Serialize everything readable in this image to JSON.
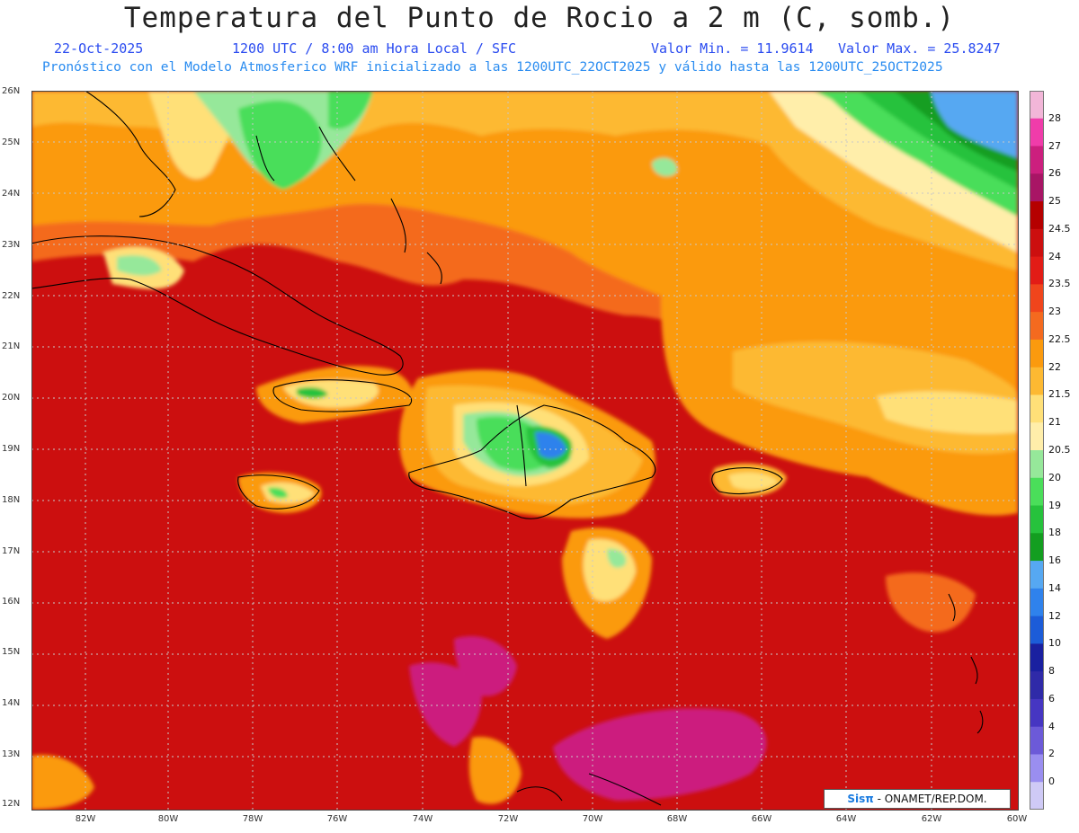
{
  "header": {
    "title": "Temperatura del Punto de Rocio a 2 m (C, somb.)",
    "date": "22-Oct-2025",
    "time": "1200 UTC / 8:00 am Hora Local / SFC",
    "min": "Valor Min. = 11.9614",
    "max": "Valor Max. = 25.8247",
    "forecast": "Pronóstico con el Modelo Atmosferico WRF inicializado a las 1200UTC_22OCT2025 y válido hasta las  1200UTC_25OCT2025"
  },
  "map": {
    "lat_labels": [
      "26N",
      "25N",
      "24N",
      "23N",
      "22N",
      "21N",
      "20N",
      "19N",
      "18N",
      "17N",
      "16N",
      "15N",
      "14N",
      "13N",
      "12N"
    ],
    "lon_labels": [
      "82W",
      "80W",
      "78W",
      "76W",
      "74W",
      "72W",
      "70W",
      "68W",
      "66W",
      "64W",
      "62W",
      "60W"
    ],
    "lat_range": [
      12,
      26
    ],
    "lon_range": [
      -83.2,
      -60
    ],
    "grid": true
  },
  "colorbar": {
    "labels": [
      "28",
      "27",
      "26",
      "25",
      "24.5",
      "24",
      "23.5",
      "23",
      "22.5",
      "22",
      "21.5",
      "21",
      "20.5",
      "20",
      "19",
      "18",
      "16",
      "14",
      "12",
      "10",
      "8",
      "6",
      "4",
      "2",
      "0"
    ],
    "colors": [
      "#f2b6d8",
      "#f03caa",
      "#cc1f7e",
      "#a81565",
      "#b50000",
      "#cc0f0f",
      "#e21c16",
      "#f0451c",
      "#f46a1f",
      "#fb9a0e",
      "#fdb932",
      "#ffe078",
      "#ffeeaa",
      "#96e89a",
      "#4ade5a",
      "#26c23c",
      "#139e20",
      "#56a8f2",
      "#2f82ec",
      "#1c5cd8",
      "#1a20a0",
      "#2f2aa8",
      "#4636c2",
      "#6c5ad8",
      "#9a8ef0",
      "#cfcaf6"
    ]
  },
  "logo": {
    "brand": "Sisπ",
    "text": " - ONAMET/REP.DOM."
  }
}
